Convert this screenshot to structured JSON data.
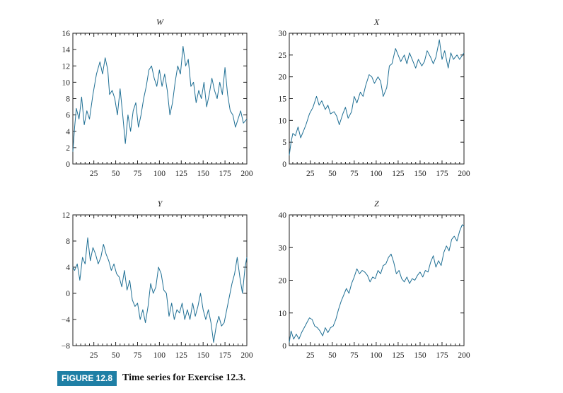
{
  "caption": {
    "label": "FIGURE 12.8",
    "text": "Time series for Exercise 12.3."
  },
  "style": {
    "line_color": "#1f6f94",
    "axis_color": "#222222",
    "label_color": "#1f7fa5"
  },
  "chart_data": [
    {
      "type": "line",
      "title": "W",
      "xlim": [
        1,
        200
      ],
      "ylim": [
        0,
        16
      ],
      "xticks": [
        25,
        50,
        75,
        100,
        125,
        150,
        175,
        200
      ],
      "yticks": [
        0,
        2,
        4,
        6,
        8,
        10,
        12,
        14,
        16
      ],
      "series": [
        {
          "x": [
            1,
            3,
            5,
            8,
            11,
            14,
            17,
            20,
            24,
            28,
            32,
            35,
            38,
            41,
            43,
            46,
            49,
            52,
            55,
            58,
            61,
            64,
            67,
            70,
            73,
            76,
            79,
            82,
            85,
            88,
            91,
            94,
            97,
            100,
            103,
            106,
            109,
            112,
            115,
            118,
            121,
            124,
            127,
            130,
            133,
            136,
            139,
            142,
            145,
            148,
            151,
            154,
            157,
            160,
            163,
            166,
            169,
            172,
            175,
            178,
            181,
            184,
            187,
            190,
            193,
            196,
            200
          ],
          "y": [
            1.5,
            4.5,
            6.8,
            5.5,
            8.2,
            4.8,
            6.5,
            5.5,
            8.5,
            11.0,
            12.5,
            11.0,
            13.0,
            11.5,
            8.5,
            9.0,
            8.0,
            6.0,
            9.2,
            6.0,
            2.5,
            6.0,
            4.0,
            6.5,
            7.5,
            4.5,
            6.0,
            8.0,
            9.5,
            11.5,
            12.0,
            10.5,
            9.5,
            11.5,
            9.5,
            11.0,
            9.0,
            6.0,
            7.5,
            10.0,
            12.0,
            11.0,
            14.4,
            12.0,
            12.8,
            9.5,
            10.0,
            7.5,
            9.0,
            8.0,
            10.0,
            7.0,
            8.5,
            10.5,
            9.0,
            8.0,
            10.0,
            8.5,
            11.8,
            8.5,
            6.5,
            6.0,
            4.5,
            5.5,
            6.5,
            5.0,
            5.5
          ]
        }
      ]
    },
    {
      "type": "line",
      "title": "X",
      "xlim": [
        1,
        200
      ],
      "ylim": [
        0,
        30
      ],
      "xticks": [
        25,
        50,
        75,
        100,
        125,
        150,
        175,
        200
      ],
      "yticks": [
        0,
        5,
        10,
        15,
        20,
        25,
        30
      ],
      "series": [
        {
          "x": [
            1,
            3,
            5,
            8,
            11,
            14,
            17,
            20,
            24,
            28,
            32,
            35,
            38,
            42,
            45,
            48,
            52,
            55,
            58,
            62,
            65,
            68,
            72,
            75,
            78,
            82,
            85,
            88,
            92,
            95,
            98,
            102,
            105,
            108,
            112,
            115,
            118,
            122,
            125,
            128,
            132,
            135,
            138,
            142,
            145,
            148,
            152,
            155,
            158,
            162,
            165,
            168,
            172,
            175,
            178,
            182,
            185,
            188,
            192,
            195,
            200
          ],
          "y": [
            2.0,
            5.0,
            7.0,
            6.5,
            8.5,
            6.0,
            7.5,
            9.0,
            11.5,
            13.0,
            15.5,
            13.5,
            14.5,
            12.5,
            13.5,
            11.5,
            12.0,
            11.0,
            9.0,
            11.5,
            13.0,
            10.5,
            12.0,
            15.5,
            14.0,
            16.5,
            15.5,
            18.0,
            20.5,
            20.0,
            18.5,
            20.0,
            19.0,
            15.5,
            17.5,
            22.5,
            23.0,
            26.5,
            25.0,
            23.5,
            25.0,
            23.0,
            25.5,
            23.5,
            22.0,
            24.0,
            22.5,
            23.5,
            26.0,
            24.5,
            23.0,
            24.5,
            28.5,
            24.0,
            26.0,
            22.0,
            25.5,
            24.0,
            25.0,
            24.0,
            25.5
          ]
        }
      ]
    },
    {
      "type": "line",
      "title": "Y",
      "xlim": [
        1,
        200
      ],
      "ylim": [
        -8,
        12
      ],
      "xticks": [
        25,
        50,
        75,
        100,
        125,
        150,
        175,
        200
      ],
      "yticks": [
        -8,
        -4,
        0,
        4,
        8,
        12
      ],
      "series": [
        {
          "x": [
            1,
            3,
            6,
            9,
            12,
            15,
            18,
            21,
            24,
            27,
            30,
            33,
            36,
            39,
            42,
            45,
            48,
            51,
            54,
            57,
            60,
            63,
            66,
            69,
            72,
            75,
            78,
            81,
            84,
            87,
            90,
            93,
            96,
            99,
            102,
            105,
            108,
            111,
            114,
            117,
            120,
            123,
            126,
            129,
            132,
            135,
            138,
            141,
            144,
            147,
            150,
            153,
            156,
            159,
            162,
            165,
            168,
            171,
            174,
            177,
            180,
            183,
            186,
            189,
            192,
            195,
            198,
            200
          ],
          "y": [
            4.0,
            3.5,
            4.5,
            2.0,
            5.5,
            4.5,
            8.5,
            5.0,
            7.0,
            6.0,
            4.5,
            5.5,
            7.5,
            6.0,
            5.0,
            3.5,
            4.5,
            3.0,
            2.5,
            1.0,
            3.5,
            0.5,
            2.0,
            -1.0,
            -2.0,
            -1.5,
            -4.0,
            -2.5,
            -4.5,
            -2.0,
            1.5,
            0.0,
            1.0,
            4.0,
            3.0,
            0.5,
            0.0,
            -3.5,
            -1.5,
            -4.0,
            -2.5,
            -3.0,
            -1.5,
            -4.0,
            -2.5,
            -4.0,
            -1.5,
            -3.5,
            -2.0,
            0.0,
            -2.5,
            -4.0,
            -2.5,
            -4.5,
            -7.5,
            -5.0,
            -3.5,
            -5.0,
            -4.5,
            -2.5,
            -0.5,
            1.5,
            3.0,
            5.5,
            2.5,
            0.0,
            4.0,
            5.5
          ]
        }
      ]
    },
    {
      "type": "line",
      "title": "Z",
      "xlim": [
        1,
        200
      ],
      "ylim": [
        0,
        40
      ],
      "xticks": [
        25,
        50,
        75,
        100,
        125,
        150,
        175,
        200
      ],
      "yticks": [
        0,
        10,
        20,
        30,
        40
      ],
      "series": [
        {
          "x": [
            1,
            3,
            6,
            9,
            12,
            15,
            18,
            21,
            24,
            27,
            30,
            33,
            36,
            39,
            42,
            45,
            48,
            51,
            54,
            57,
            60,
            63,
            66,
            69,
            72,
            75,
            78,
            81,
            84,
            87,
            90,
            93,
            96,
            99,
            102,
            105,
            108,
            111,
            114,
            117,
            120,
            123,
            126,
            129,
            132,
            135,
            138,
            141,
            144,
            147,
            150,
            153,
            156,
            159,
            162,
            165,
            168,
            171,
            174,
            177,
            180,
            183,
            186,
            189,
            192,
            195,
            198,
            200
          ],
          "y": [
            1.0,
            4.5,
            2.0,
            3.5,
            2.0,
            4.0,
            5.5,
            7.0,
            8.5,
            8.0,
            6.0,
            5.5,
            4.5,
            3.0,
            5.5,
            4.0,
            5.5,
            6.0,
            8.0,
            11.0,
            13.5,
            15.5,
            17.5,
            16.0,
            19.0,
            21.0,
            23.5,
            22.0,
            23.0,
            22.5,
            21.5,
            19.5,
            21.0,
            20.5,
            23.0,
            22.0,
            24.5,
            25.0,
            27.0,
            28.0,
            25.5,
            22.0,
            23.0,
            20.5,
            19.5,
            21.0,
            19.0,
            20.5,
            20.0,
            21.5,
            22.5,
            21.0,
            23.0,
            22.5,
            25.5,
            27.5,
            24.0,
            26.0,
            24.5,
            28.5,
            30.5,
            29.0,
            32.5,
            33.5,
            32.0,
            35.0,
            37.0,
            36.5
          ]
        }
      ]
    }
  ]
}
